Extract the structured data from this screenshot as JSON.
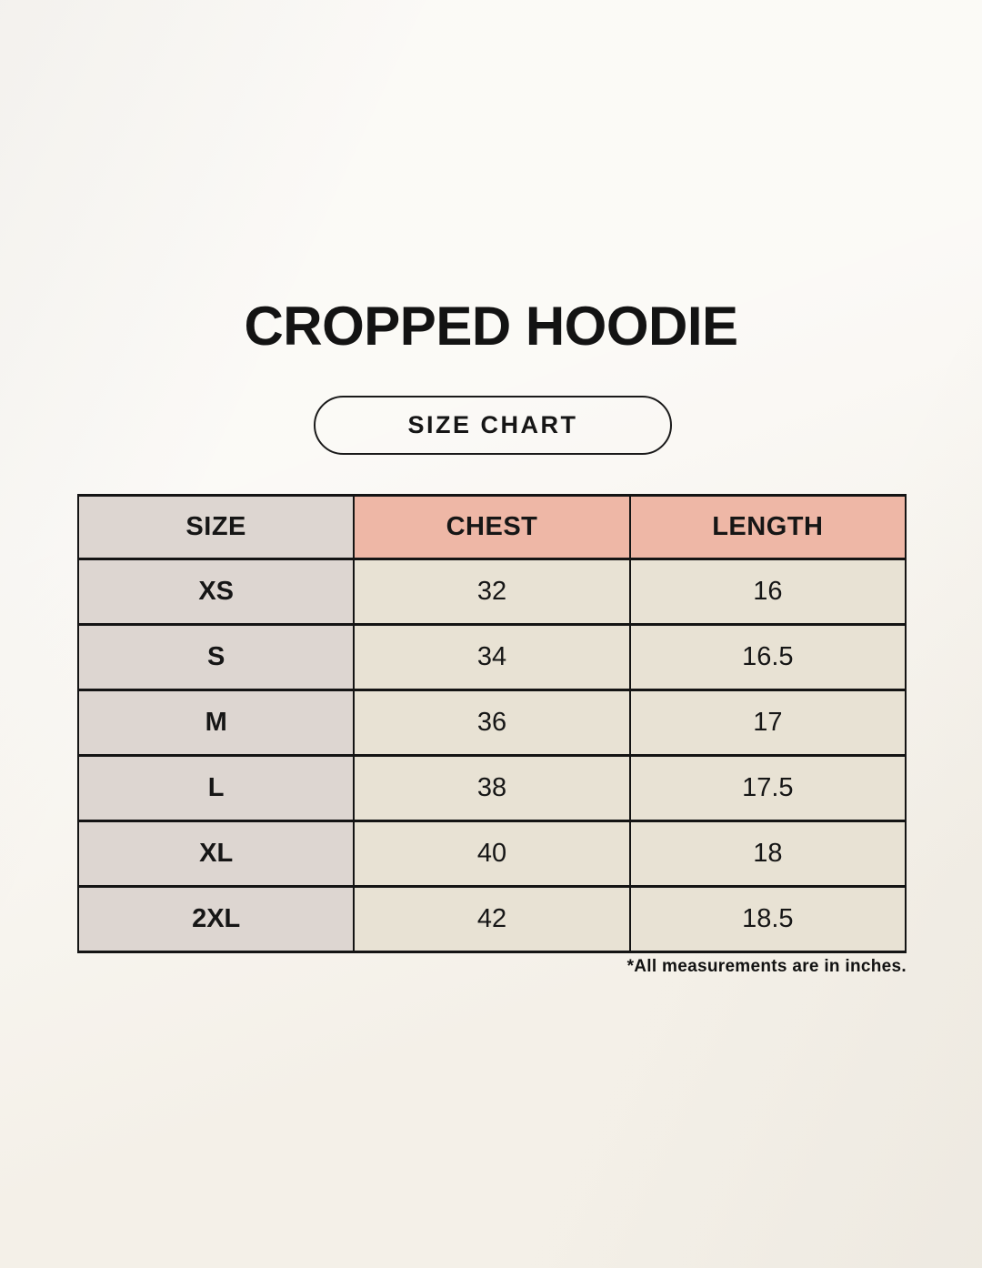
{
  "page": {
    "title": "CROPPED HOODIE",
    "badge_label": "SIZE CHART",
    "footnote": "*All measurements are in inches."
  },
  "table": {
    "columns": [
      "SIZE",
      "CHEST",
      "LENGTH"
    ],
    "rows": [
      {
        "size": "XS",
        "chest": "32",
        "length": "16"
      },
      {
        "size": "S",
        "chest": "34",
        "length": "16.5"
      },
      {
        "size": "M",
        "chest": "36",
        "length": "17"
      },
      {
        "size": "L",
        "chest": "38",
        "length": "17.5"
      },
      {
        "size": "XL",
        "chest": "40",
        "length": "18"
      },
      {
        "size": "2XL",
        "chest": "42",
        "length": "18.5"
      }
    ]
  },
  "colors": {
    "background": "#f7f4ee",
    "size_column_bg": "#ddd6d1",
    "header_accent_bg": "#eeb7a6",
    "cell_bg": "#e8e2d4",
    "border": "#141414",
    "text": "#161616"
  }
}
